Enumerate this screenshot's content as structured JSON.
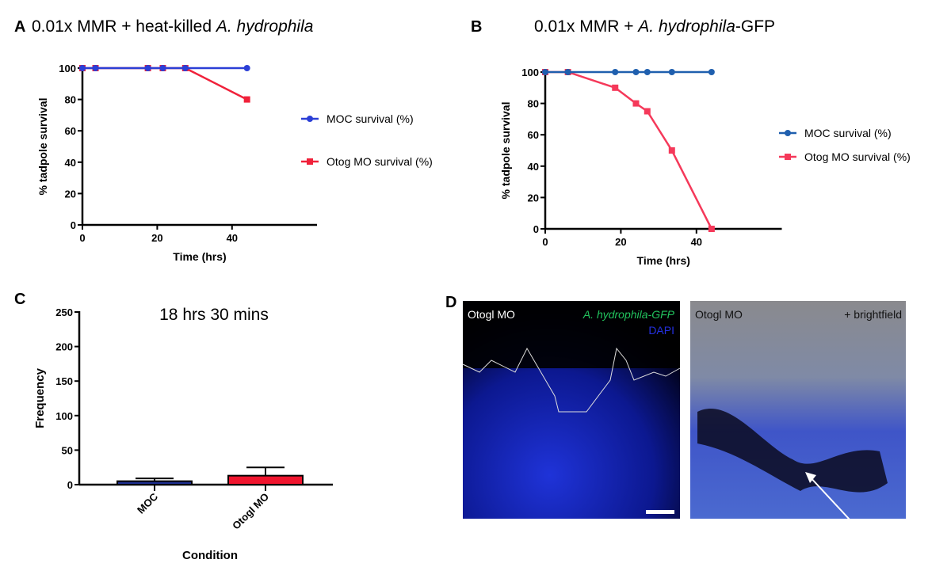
{
  "colors": {
    "blue_a": "#2b3fd6",
    "red": "#f0213a",
    "blue_b": "#1f5fae",
    "red_b": "#f5395a",
    "bar_blue": "#1e2f8f",
    "bar_red": "#f0152e"
  },
  "chart_data": [
    {
      "panel": "A",
      "type": "line",
      "title_prefix": "0.01x MMR + heat-killed ",
      "title_italic": "A. hydrophila",
      "title_suffix": "",
      "xlabel": "Time (hrs)",
      "ylabel": "% tadpole survival",
      "xlim": [
        0,
        50
      ],
      "ylim": [
        0,
        100
      ],
      "xticks": [
        0,
        20,
        40
      ],
      "yticks": [
        0,
        20,
        40,
        60,
        80,
        100
      ],
      "legend_position": "right",
      "series": [
        {
          "name": "MOC survival (%)",
          "marker": "circle",
          "x": [
            0,
            3.5,
            17.5,
            21.5,
            27.5,
            44
          ],
          "y": [
            100,
            100,
            100,
            100,
            100,
            100
          ]
        },
        {
          "name": "Otog MO survival (%)",
          "marker": "square",
          "x": [
            0,
            3.5,
            17.5,
            21.5,
            27.5,
            44
          ],
          "y": [
            100,
            100,
            100,
            100,
            100,
            80
          ]
        }
      ]
    },
    {
      "panel": "B",
      "type": "line",
      "title_prefix": "0.01x MMR + ",
      "title_italic": "A. hydrophila",
      "title_suffix": "-GFP",
      "xlabel": "Time (hrs)",
      "ylabel": "% tadpole survival",
      "xlim": [
        0,
        50
      ],
      "ylim": [
        0,
        100
      ],
      "xticks": [
        0,
        20,
        40
      ],
      "yticks": [
        0,
        20,
        40,
        60,
        80,
        100
      ],
      "legend_position": "right",
      "series": [
        {
          "name": "MOC survival (%)",
          "marker": "circle",
          "x": [
            0,
            6,
            18.5,
            24,
            27,
            33.5,
            44
          ],
          "y": [
            100,
            100,
            100,
            100,
            100,
            100,
            100
          ]
        },
        {
          "name": "Otog MO survival (%)",
          "marker": "square",
          "x": [
            0,
            6,
            18.5,
            24,
            27,
            33.5,
            44
          ],
          "y": [
            100,
            100,
            90,
            80,
            75,
            50,
            0
          ]
        }
      ]
    },
    {
      "panel": "C",
      "type": "bar",
      "title": "18 hrs 30 mins",
      "xlabel": "Condition",
      "ylabel": "Frequency",
      "ylim": [
        0,
        250
      ],
      "yticks": [
        0,
        50,
        100,
        150,
        200,
        250
      ],
      "categories": [
        "MOC",
        "Otogl MO"
      ],
      "values": [
        5,
        13
      ],
      "error_upper": [
        9,
        25
      ]
    }
  ],
  "panel_d": {
    "label": "D",
    "left": {
      "label": "Otogl MO",
      "gfp_label": "A. hydrophila-GFP",
      "dapi_label": "DAPI"
    },
    "right": {
      "label": "Otogl MO",
      "overlay_label": "+ brightfield"
    }
  }
}
